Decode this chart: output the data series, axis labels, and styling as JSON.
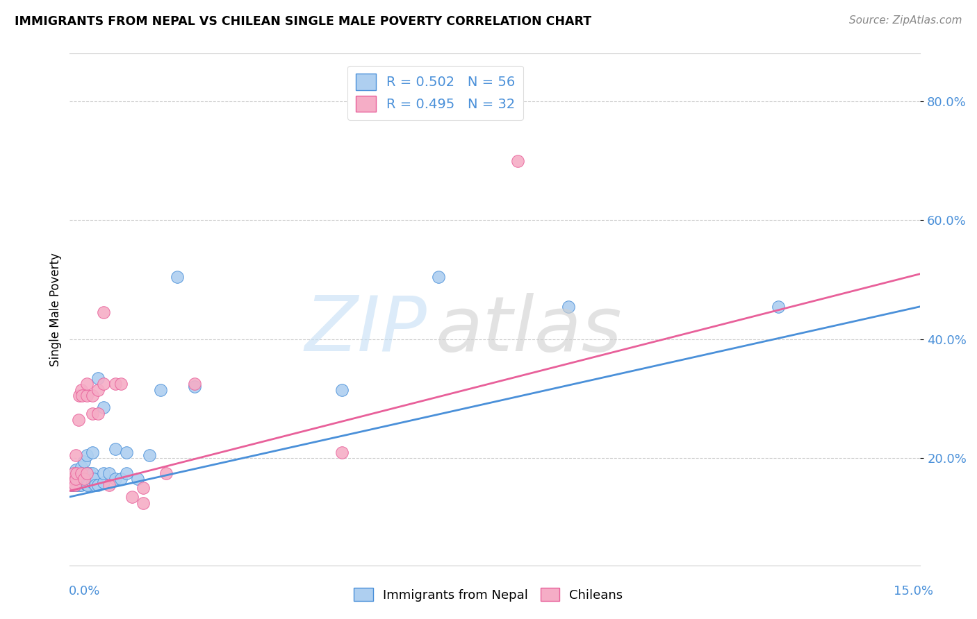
{
  "title": "IMMIGRANTS FROM NEPAL VS CHILEAN SINGLE MALE POVERTY CORRELATION CHART",
  "source": "Source: ZipAtlas.com",
  "ylabel": "Single Male Poverty",
  "y_tick_vals": [
    0.2,
    0.4,
    0.6,
    0.8
  ],
  "y_tick_labels": [
    "20.0%",
    "40.0%",
    "60.0%",
    "80.0%"
  ],
  "x_lim": [
    0.0,
    0.15
  ],
  "y_lim": [
    0.02,
    0.88
  ],
  "legend_r1": "R = 0.502",
  "legend_n1": "N = 56",
  "legend_r2": "R = 0.495",
  "legend_n2": "N = 32",
  "color_nepal": "#aecff0",
  "color_chile": "#f5adc6",
  "color_line_nepal": "#4a90d9",
  "color_line_chile": "#e8609a",
  "nepal_line_x0": 0.0,
  "nepal_line_y0": 0.135,
  "nepal_line_x1": 0.15,
  "nepal_line_y1": 0.455,
  "chile_line_x0": 0.0,
  "chile_line_y0": 0.145,
  "chile_line_x1": 0.15,
  "chile_line_y1": 0.51,
  "nepal_x": [
    0.0003,
    0.0004,
    0.0005,
    0.0006,
    0.0007,
    0.0008,
    0.0009,
    0.001,
    0.001,
    0.001,
    0.0012,
    0.0013,
    0.0014,
    0.0015,
    0.0016,
    0.0017,
    0.0018,
    0.002,
    0.002,
    0.002,
    0.002,
    0.0022,
    0.0023,
    0.0025,
    0.0025,
    0.003,
    0.003,
    0.003,
    0.003,
    0.0032,
    0.0035,
    0.004,
    0.004,
    0.004,
    0.0042,
    0.0045,
    0.005,
    0.005,
    0.006,
    0.006,
    0.006,
    0.007,
    0.008,
    0.008,
    0.009,
    0.01,
    0.01,
    0.012,
    0.014,
    0.016,
    0.019,
    0.022,
    0.048,
    0.065,
    0.088,
    0.125
  ],
  "nepal_y": [
    0.155,
    0.16,
    0.155,
    0.165,
    0.16,
    0.155,
    0.16,
    0.155,
    0.17,
    0.18,
    0.16,
    0.155,
    0.165,
    0.175,
    0.16,
    0.165,
    0.155,
    0.155,
    0.165,
    0.175,
    0.185,
    0.165,
    0.175,
    0.165,
    0.195,
    0.155,
    0.165,
    0.175,
    0.205,
    0.155,
    0.175,
    0.16,
    0.175,
    0.21,
    0.165,
    0.155,
    0.155,
    0.335,
    0.16,
    0.175,
    0.285,
    0.175,
    0.215,
    0.165,
    0.165,
    0.21,
    0.175,
    0.165,
    0.205,
    0.315,
    0.505,
    0.32,
    0.315,
    0.505,
    0.455,
    0.455
  ],
  "chile_x": [
    0.0003,
    0.0005,
    0.0007,
    0.0009,
    0.001,
    0.001,
    0.0012,
    0.0015,
    0.0017,
    0.002,
    0.002,
    0.0022,
    0.0025,
    0.003,
    0.003,
    0.003,
    0.004,
    0.004,
    0.005,
    0.005,
    0.006,
    0.006,
    0.007,
    0.008,
    0.009,
    0.011,
    0.013,
    0.013,
    0.017,
    0.022,
    0.048,
    0.079
  ],
  "chile_y": [
    0.155,
    0.165,
    0.175,
    0.155,
    0.165,
    0.205,
    0.175,
    0.265,
    0.305,
    0.175,
    0.315,
    0.305,
    0.165,
    0.175,
    0.305,
    0.325,
    0.275,
    0.305,
    0.275,
    0.315,
    0.325,
    0.445,
    0.155,
    0.325,
    0.325,
    0.135,
    0.125,
    0.15,
    0.175,
    0.325,
    0.21,
    0.7
  ]
}
